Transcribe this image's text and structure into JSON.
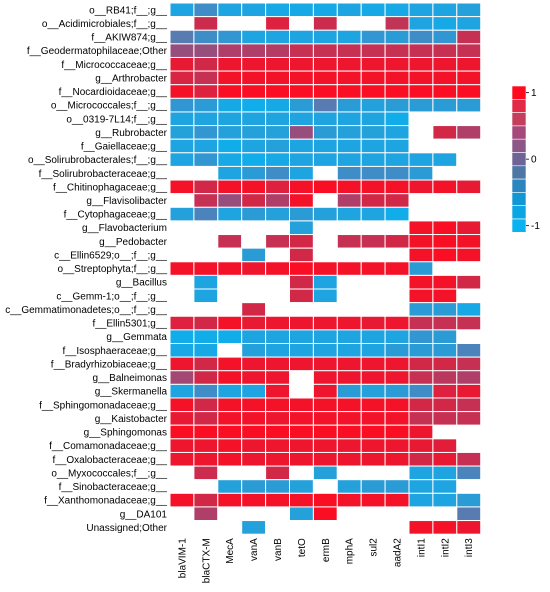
{
  "chart_data": {
    "type": "heatmap",
    "title": "",
    "xlabel": "",
    "ylabel": "",
    "rows": [
      "o__RB41;f__;g__",
      "o__Acidimicrobiales;f__;g__",
      "f__AKIW874;g__",
      "f__Geodermatophilaceae;Other",
      "f__Micrococcaceae;g__",
      "g__Arthrobacter",
      "f__Nocardioidaceae;g__",
      "o__Micrococcales;f__;g__",
      "o__0319-7L14;f__;g__",
      "g__Rubrobacter",
      "f__Gaiellaceae;g__",
      "o__Solirubrobacterales;f__;g__",
      "f__Solirubrobacteraceae;g__",
      "f__Chitinophagaceae;g__",
      "g__Flavisolibacter",
      "f__Cytophagaceae;g__",
      "g__Flavobacterium",
      "g__Pedobacter",
      "c__Ellin6529;o__;f__;g__",
      "o__Streptophyta;f__;g__",
      "g__Bacillus",
      "c__Gemm-1;o__;f__;g__",
      "c__Gemmatimonadetes;o__;f__;g__",
      "f__Ellin5301;g__",
      "g__Gemmata",
      "f__Isosphaeraceae;g__",
      "f__Bradyrhizobiaceae;g__",
      "g__Balneimonas",
      "g__Skermanella",
      "f__Sphingomonadaceae;g__",
      "g__Kaistobacter",
      "g__Sphingomonas",
      "f__Comamonadaceae;g__",
      "f__Oxalobacteraceae;g__",
      "o__Myxococcales;f__;g__",
      "f__Sinobacteraceae;g__",
      "f__Xanthomonadaceae;g__",
      "g__DA101",
      "Unassigned;Other"
    ],
    "columns": [
      "blaVIM-1",
      "blaCTX-M",
      "MecA",
      "vanA",
      "vanB",
      "tetO",
      "ermB",
      "mphA",
      "sul2",
      "aadA2",
      "intI1",
      "intI2",
      "intI3"
    ],
    "values": [
      [
        -0.85,
        -0.6,
        -0.85,
        -0.85,
        -0.9,
        -0.9,
        -0.9,
        -0.85,
        -0.9,
        -0.9,
        -0.85,
        -0.85,
        -0.8
      ],
      [
        null,
        0.55,
        null,
        null,
        0.7,
        null,
        0.55,
        null,
        null,
        0.45,
        -0.85,
        -0.9,
        -0.85
      ],
      [
        -0.4,
        -0.6,
        -0.7,
        -0.85,
        -0.85,
        -0.85,
        -0.85,
        -0.85,
        -0.7,
        -0.75,
        -0.6,
        -0.7,
        0.5
      ],
      [
        0.1,
        0.1,
        0.3,
        0.3,
        0.35,
        0.5,
        0.5,
        0.5,
        0.5,
        0.5,
        0.5,
        0.5,
        0.5
      ],
      [
        0.8,
        0.6,
        0.85,
        0.85,
        0.85,
        0.85,
        0.85,
        0.85,
        0.85,
        0.85,
        0.85,
        0.85,
        0.85
      ],
      [
        0.65,
        0.5,
        0.9,
        0.9,
        0.9,
        0.9,
        0.9,
        0.9,
        0.9,
        0.9,
        0.9,
        0.9,
        0.9
      ],
      [
        0.9,
        0.7,
        0.95,
        0.95,
        0.95,
        0.95,
        0.95,
        0.95,
        0.95,
        0.95,
        0.95,
        0.95,
        0.95
      ],
      [
        -0.7,
        -0.75,
        -0.9,
        -0.95,
        -0.9,
        -0.75,
        -0.4,
        -0.75,
        -0.8,
        -0.75,
        -0.75,
        -0.75,
        -0.75
      ],
      [
        -0.85,
        -0.85,
        -0.85,
        -0.85,
        -0.85,
        -0.85,
        -0.85,
        -0.85,
        -0.85,
        -0.95,
        null,
        null,
        null
      ],
      [
        -0.8,
        -0.7,
        -0.8,
        -0.8,
        -0.8,
        0.1,
        -0.75,
        -0.8,
        -0.8,
        -0.85,
        null,
        0.6,
        0.3
      ],
      [
        -0.85,
        -0.85,
        -0.95,
        -0.85,
        -0.8,
        -0.85,
        -0.85,
        -0.85,
        -0.85,
        -0.85,
        null,
        null,
        null
      ],
      [
        -0.85,
        -0.7,
        -0.9,
        -0.95,
        -0.9,
        -0.85,
        -0.85,
        -0.85,
        -0.85,
        -0.85,
        -0.85,
        -0.85,
        null
      ],
      [
        null,
        null,
        -0.85,
        -0.75,
        -0.6,
        -0.85,
        null,
        -0.6,
        -0.6,
        -0.6,
        -0.75,
        null,
        null
      ],
      [
        0.9,
        0.6,
        0.9,
        0.9,
        0.7,
        0.9,
        0.95,
        0.9,
        0.9,
        0.9,
        0.85,
        0.9,
        0.8
      ],
      [
        null,
        0.5,
        0.1,
        0.6,
        0.3,
        0.9,
        null,
        0.3,
        0.6,
        0.6,
        null,
        null,
        null
      ],
      [
        -0.8,
        -0.5,
        -0.85,
        -0.75,
        -0.8,
        -0.75,
        -0.8,
        -0.85,
        -0.85,
        -0.95,
        null,
        null,
        null
      ],
      [
        null,
        null,
        null,
        null,
        null,
        -0.8,
        null,
        null,
        null,
        null,
        0.9,
        0.95,
        0.8
      ],
      [
        null,
        null,
        0.5,
        null,
        0.5,
        0.6,
        null,
        0.5,
        0.5,
        0.6,
        0.9,
        0.95,
        0.9
      ],
      [
        null,
        null,
        null,
        -0.75,
        null,
        0.6,
        null,
        null,
        null,
        null,
        0.9,
        0.95,
        0.9
      ],
      [
        0.9,
        0.9,
        0.9,
        0.85,
        0.9,
        0.95,
        0.9,
        0.9,
        0.9,
        0.9,
        -0.75,
        null,
        null
      ],
      [
        null,
        -0.85,
        null,
        null,
        null,
        0.6,
        -0.85,
        null,
        null,
        null,
        0.9,
        0.9,
        0.6
      ],
      [
        null,
        -0.85,
        null,
        null,
        null,
        0.6,
        -0.85,
        null,
        null,
        null,
        0.9,
        0.9,
        null
      ],
      [
        null,
        null,
        null,
        0.6,
        null,
        null,
        null,
        null,
        null,
        null,
        -0.75,
        -0.75,
        -0.9
      ],
      [
        0.7,
        0.6,
        0.9,
        0.8,
        0.85,
        0.85,
        0.85,
        0.85,
        0.8,
        0.85,
        0.5,
        0.5,
        0.5
      ],
      [
        -0.95,
        -0.95,
        -0.95,
        -0.85,
        -0.85,
        -0.85,
        -0.85,
        -0.85,
        -0.85,
        -0.85,
        -0.7,
        -0.75,
        null
      ],
      [
        -0.9,
        -0.9,
        null,
        -0.8,
        -0.85,
        -0.85,
        -0.85,
        -0.85,
        -0.85,
        -0.75,
        -0.75,
        -0.75,
        -0.5
      ],
      [
        0.85,
        0.6,
        0.9,
        0.85,
        0.85,
        0.85,
        0.85,
        0.85,
        0.85,
        0.85,
        0.6,
        0.6,
        0.5
      ],
      [
        0.2,
        0.6,
        0.9,
        0.85,
        0.85,
        null,
        0.85,
        0.85,
        0.85,
        0.85,
        0.5,
        0.4,
        0.3
      ],
      [
        -0.85,
        -0.6,
        -0.85,
        -0.85,
        0.85,
        null,
        0.85,
        -0.75,
        -0.8,
        -0.75,
        -0.6,
        0.7,
        0.8
      ],
      [
        0.9,
        0.6,
        0.9,
        0.9,
        0.9,
        0.9,
        0.9,
        0.9,
        0.9,
        0.9,
        0.6,
        0.6,
        0.5
      ],
      [
        0.8,
        0.6,
        0.9,
        0.9,
        0.85,
        0.9,
        0.9,
        0.9,
        0.9,
        0.9,
        0.5,
        0.5,
        0.5
      ],
      [
        0.95,
        0.95,
        0.95,
        0.95,
        0.95,
        0.95,
        0.95,
        0.95,
        0.95,
        0.95,
        0.85,
        null,
        null
      ],
      [
        0.85,
        0.85,
        0.9,
        0.85,
        0.85,
        0.85,
        0.85,
        0.85,
        0.85,
        0.85,
        0.8,
        0.75,
        null
      ],
      [
        0.85,
        0.85,
        0.9,
        0.85,
        0.85,
        0.85,
        0.85,
        0.85,
        0.85,
        0.85,
        0.6,
        0.8,
        0.5
      ],
      [
        null,
        0.55,
        null,
        null,
        0.6,
        null,
        -0.8,
        null,
        null,
        null,
        -0.85,
        -0.85,
        -0.5
      ],
      [
        null,
        null,
        -0.8,
        -0.75,
        -0.75,
        -0.8,
        null,
        -0.8,
        -0.75,
        -0.75,
        -0.85,
        -0.85,
        null
      ],
      [
        0.9,
        0.6,
        0.9,
        0.9,
        0.9,
        0.9,
        0.95,
        0.9,
        0.9,
        0.9,
        -0.85,
        -0.85,
        -0.75
      ],
      [
        null,
        0.3,
        null,
        null,
        null,
        -0.8,
        0.95,
        null,
        null,
        null,
        null,
        null,
        -0.4
      ],
      [
        null,
        null,
        null,
        -0.8,
        null,
        null,
        null,
        null,
        null,
        null,
        0.9,
        0.9,
        0.85
      ]
    ],
    "colorbar": {
      "ticks": [
        "1",
        "0",
        "-1"
      ],
      "colors": [
        "#ff0a1e",
        "#e12a47",
        "#c43e5c",
        "#a5487a",
        "#8c5688",
        "#6e6496",
        "#4e77a6",
        "#2b86c0",
        "#1197d4",
        "#0aa6e4",
        "#0ab2f0"
      ],
      "range": [
        -1,
        1
      ]
    },
    "color_high": "#ff0a1e",
    "color_mid": "#8c5688",
    "color_low": "#0ab2f0",
    "grid": true,
    "legend_position": "right"
  }
}
